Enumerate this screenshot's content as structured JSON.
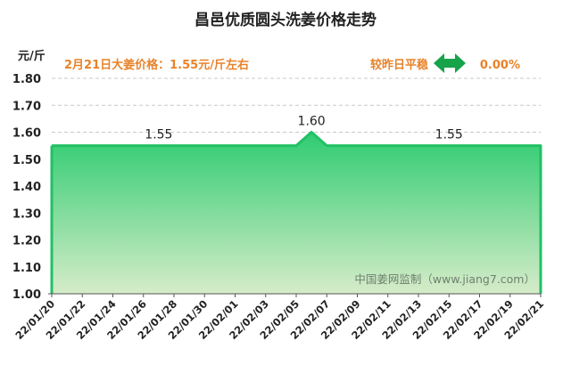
{
  "chart_data": {
    "type": "area",
    "title": "昌邑优质圆头洗姜价格走势",
    "unit_label": "元/斤",
    "price_info": "2月21日大姜价格：1.55元/斤左右",
    "compare_label": "较昨日平稳",
    "compare_value": "0.00%",
    "watermark": "中国姜网监制（www.jiang7.com）",
    "ylim": [
      1.0,
      1.8
    ],
    "y_ticks": [
      "1.00",
      "1.10",
      "1.20",
      "1.30",
      "1.40",
      "1.50",
      "1.60",
      "1.70",
      "1.80"
    ],
    "x_tick_labels": [
      "22/01/20",
      "22/01/22",
      "22/01/24",
      "22/01/26",
      "22/01/28",
      "22/01/30",
      "22/02/01",
      "22/02/03",
      "22/02/05",
      "22/02/07",
      "22/02/09",
      "22/02/11",
      "22/02/13",
      "22/02/15",
      "22/02/17",
      "22/02/19",
      "22/02/21"
    ],
    "x": [
      "22/01/20",
      "22/01/21",
      "22/01/22",
      "22/01/23",
      "22/01/24",
      "22/01/25",
      "22/01/26",
      "22/01/27",
      "22/01/28",
      "22/01/29",
      "22/01/30",
      "22/01/31",
      "22/02/01",
      "22/02/02",
      "22/02/03",
      "22/02/04",
      "22/02/05",
      "22/02/06",
      "22/02/07",
      "22/02/08",
      "22/02/09",
      "22/02/10",
      "22/02/11",
      "22/02/12",
      "22/02/13",
      "22/02/14",
      "22/02/15",
      "22/02/16",
      "22/02/17",
      "22/02/18",
      "22/02/19",
      "22/02/20",
      "22/02/21"
    ],
    "values": [
      1.55,
      1.55,
      1.55,
      1.55,
      1.55,
      1.55,
      1.55,
      1.55,
      1.55,
      1.55,
      1.55,
      1.55,
      1.55,
      1.55,
      1.55,
      1.55,
      1.55,
      1.6,
      1.55,
      1.55,
      1.55,
      1.55,
      1.55,
      1.55,
      1.55,
      1.55,
      1.55,
      1.55,
      1.55,
      1.55,
      1.55,
      1.55,
      1.55
    ],
    "data_labels": [
      {
        "x": "22/01/27",
        "text": "1.55"
      },
      {
        "x": "22/02/06",
        "text": "1.60"
      },
      {
        "x": "22/02/15",
        "text": "1.55"
      }
    ],
    "grid": true,
    "colors": {
      "line": "#22c064",
      "fill_top": "#2ecc71",
      "fill_bottom": "#d6ecc9",
      "price_text": "#e8822a",
      "arrow": "#16a34a",
      "grid": "#c8c8c8"
    },
    "arrow_icon": "left-right-arrow-icon"
  }
}
